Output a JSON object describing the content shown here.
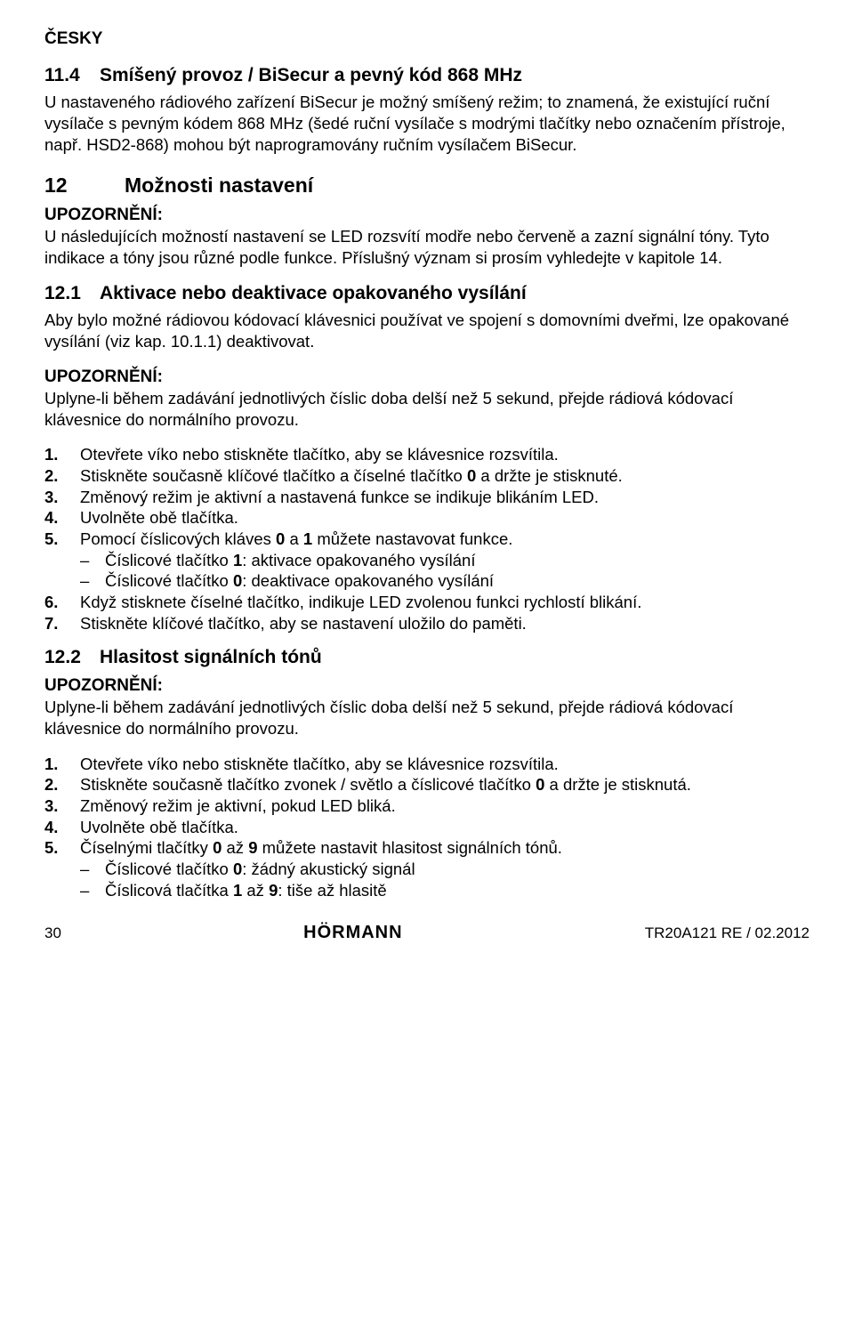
{
  "lang_label": "ČESKY",
  "sec_11_4": {
    "num": "11.4",
    "title": "Smíšený provoz / BiSecur a pevný kód 868 MHz",
    "body": "U nastaveného rádiového zařízení BiSecur je možný smíšený režim; to znamená, že existující ruční vysílače s pevným kódem 868 MHz (šedé ruční vysílače s modrými tlačítky nebo označením přístroje, např. HSD2-868) mohou být naprogramovány ručním vysílačem BiSecur."
  },
  "sec_12": {
    "num": "12",
    "title": "Možnosti nastavení",
    "notice_label": "UPOZORNĚNÍ:",
    "notice_body": "U následujících možností nastavení se LED rozsvítí modře nebo červeně a zazní signální tóny. Tyto indikace a tóny jsou různé podle funkce. Příslušný význam si prosím vyhledejte v kapitole 14."
  },
  "sec_12_1": {
    "num": "12.1",
    "title": "Aktivace nebo deaktivace opakovaného vysílání",
    "intro": "Aby bylo možné rádiovou kódovací klávesnici používat ve spojení s domovními dveřmi, lze opakované vysílání (viz kap. 10.1.1) deaktivovat.",
    "notice_label": "UPOZORNĚNÍ:",
    "notice_body": "Uplyne-li během zadávání jednotlivých číslic doba delší než 5 sekund, přejde rádiová kódovací klávesnice do normálního provozu.",
    "steps": [
      "Otevřete víko nebo stiskněte tlačítko, aby se klávesnice rozsvítila.",
      "Stiskněte současně klíčové tlačítko a číselné tlačítko 0 a držte je stisknuté.",
      "Změnový režim je aktivní a nastavená funkce se indikuje blikáním LED.",
      "Uvolněte obě tlačítka.",
      "Pomocí číslicových kláves 0 a 1 můžete nastavovat funkce.",
      "Když stisknete číselné tlačítko, indikuje LED zvolenou funkci rychlostí blikání.",
      "Stiskněte klíčové tlačítko, aby se nastavení uložilo do paměti."
    ],
    "step2_bold": "0",
    "step5_bold1": "0",
    "step5_bold2": "1",
    "substeps": [
      "Číslicové tlačítko 1: aktivace opakovaného vysílání",
      "Číslicové tlačítko 0: deaktivace opakovaného vysílání"
    ],
    "sub1_bold": "1",
    "sub2_bold": "0"
  },
  "sec_12_2": {
    "num": "12.2",
    "title": "Hlasitost signálních tónů",
    "notice_label": "UPOZORNĚNÍ:",
    "notice_body": "Uplyne-li během zadávání jednotlivých číslic doba delší než 5 sekund, přejde rádiová kódovací klávesnice do normálního provozu.",
    "steps": [
      "Otevřete víko nebo stiskněte tlačítko, aby se klávesnice rozsvítila.",
      "Stiskněte současně tlačítko zvonek / světlo a číslicové tlačítko 0 a držte je stisknutá.",
      "Změnový režim je aktivní, pokud LED bliká.",
      "Uvolněte obě tlačítka.",
      "Číselnými tlačítky 0 až 9 můžete nastavit hlasitost signálních tónů."
    ],
    "step2_bold": "0",
    "step5_bold1": "0",
    "step5_bold2": "9",
    "substeps": [
      "Číslicové tlačítko 0: žádný akustický signál",
      "Číslicová tlačítka 1 až 9: tiše až hlasitě"
    ],
    "sub1_bold": "0",
    "sub2_bold1": "1",
    "sub2_bold2": "9"
  },
  "footer": {
    "page": "30",
    "brand": "HÖRMANN",
    "doc": "TR20A121  RE / 02.2012"
  }
}
